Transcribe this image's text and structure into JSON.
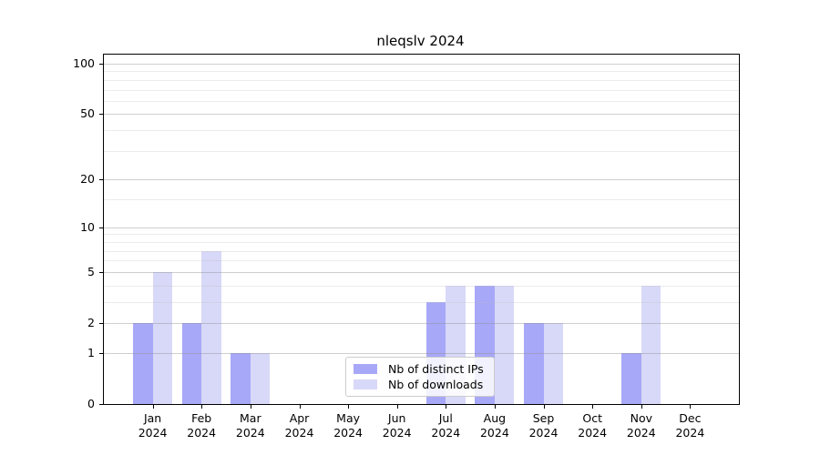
{
  "chart_data": {
    "type": "bar",
    "title": "nleqslv 2024",
    "categories": [
      "Jan",
      "Feb",
      "Mar",
      "Apr",
      "May",
      "Jun",
      "Jul",
      "Aug",
      "Sep",
      "Oct",
      "Nov",
      "Dec"
    ],
    "x_year": "2024",
    "series": [
      {
        "name": "Nb of distinct IPs",
        "color": "#a8a8f8",
        "values": [
          2,
          2,
          1,
          0,
          0,
          0,
          3,
          4,
          2,
          0,
          1,
          0
        ]
      },
      {
        "name": "Nb of downloads",
        "color": "#d8d8f8",
        "values": [
          5,
          7,
          1,
          0,
          0,
          0,
          4,
          4,
          2,
          0,
          4,
          0
        ]
      }
    ],
    "y_axis": {
      "scale": "log1p",
      "min": 0,
      "max": 100,
      "major_ticks": [
        0,
        1,
        2,
        5,
        10,
        20,
        50,
        100
      ],
      "minor_ticks": [
        3,
        4,
        6,
        7,
        8,
        9,
        15,
        30,
        40,
        60,
        70,
        80,
        90
      ]
    },
    "grid": true,
    "legend_position": "lower-center"
  }
}
